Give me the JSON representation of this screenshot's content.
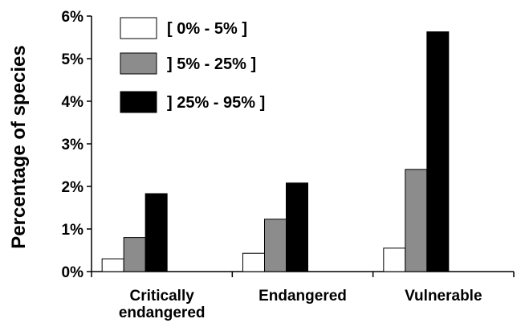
{
  "chart_data": {
    "type": "bar",
    "ylabel": "Percentage of species",
    "xlabel": "",
    "categories": [
      "Critically endangered",
      "Endangered",
      "Vulnerable"
    ],
    "category_lines": [
      [
        "Critically",
        "endangered"
      ],
      [
        "Endangered"
      ],
      [
        "Vulnerable"
      ]
    ],
    "series": [
      {
        "name": "[ 0% - 5% ]",
        "values": [
          0.3,
          0.43,
          0.55
        ],
        "color": "#ffffff"
      },
      {
        "name": "] 5% - 25% ]",
        "values": [
          0.8,
          1.23,
          2.4
        ],
        "color": "#8c8c8c"
      },
      {
        "name": "] 25% - 95% ]",
        "values": [
          1.83,
          2.08,
          5.63
        ],
        "color": "#000000"
      }
    ],
    "ylim": [
      0,
      6
    ],
    "yticks": [
      0,
      1,
      2,
      3,
      4,
      5,
      6
    ],
    "ytick_labels": [
      "0%",
      "1%",
      "2%",
      "3%",
      "4%",
      "5%",
      "6%"
    ],
    "grid": false,
    "legend_position": "top-left"
  }
}
